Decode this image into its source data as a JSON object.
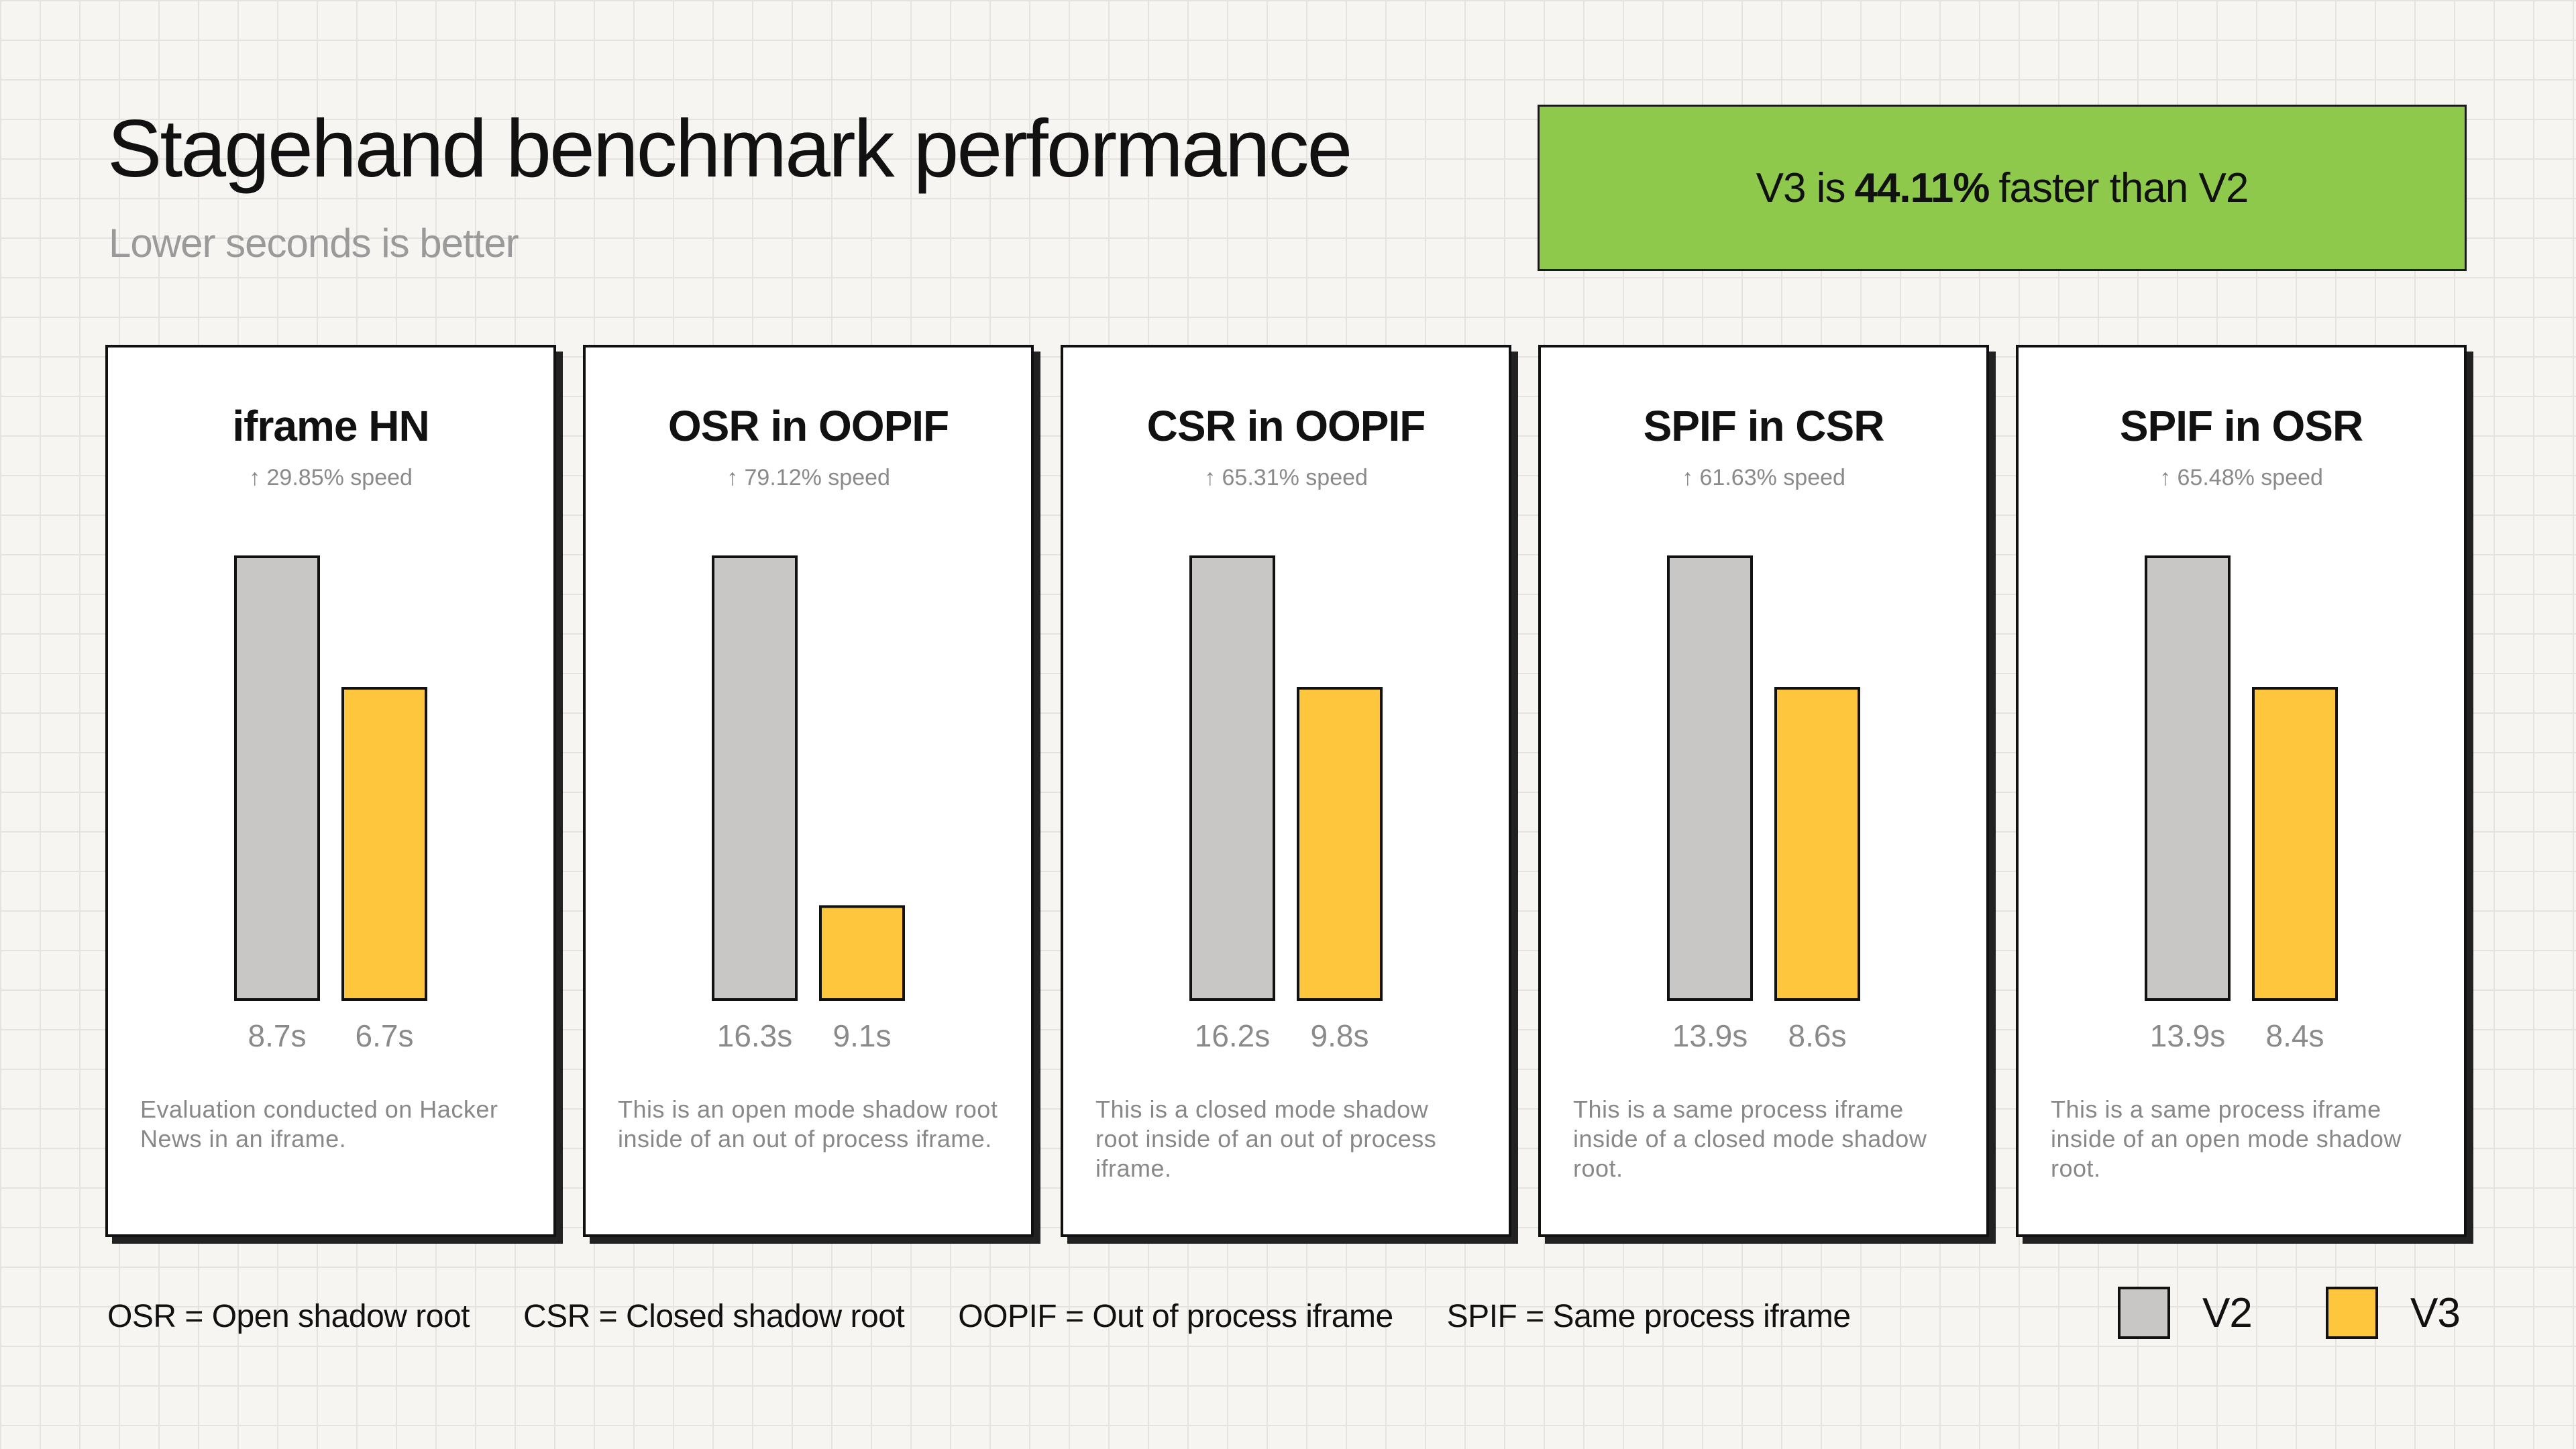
{
  "header": {
    "title": "Stagehand benchmark performance",
    "subtitle": "Lower seconds is better"
  },
  "banner": {
    "prefix": "V3 is",
    "highlight": "44.11%",
    "suffix": "faster than V2",
    "color": "#8fc94c"
  },
  "colors": {
    "v2": "#c8c7c5",
    "v3": "#fdc63c",
    "stroke": "#111111",
    "value_label": "#8a8a8a"
  },
  "chart_data": [
    {
      "type": "bar",
      "title": "iframe HN",
      "speed_label": "↑ 29.85% speed",
      "categories": [
        "V2",
        "V3"
      ],
      "values": [
        8.7,
        6.7
      ],
      "value_labels": [
        "8.7s",
        "6.7s"
      ],
      "description": "Evaluation conducted on Hacker News in an iframe."
    },
    {
      "type": "bar",
      "title": "OSR in OOPIF",
      "speed_label": "↑ 79.12% speed",
      "categories": [
        "V2",
        "V3"
      ],
      "values": [
        16.3,
        9.1
      ],
      "value_labels": [
        "16.3s",
        "9.1s"
      ],
      "description": "This is an open mode shadow root inside of an out of process iframe."
    },
    {
      "type": "bar",
      "title": "CSR in OOPIF",
      "speed_label": "↑ 65.31% speed",
      "categories": [
        "V2",
        "V3"
      ],
      "values": [
        16.2,
        9.8
      ],
      "value_labels": [
        "16.2s",
        "9.8s"
      ],
      "description": "This is a closed mode shadow root inside of an out of process iframe."
    },
    {
      "type": "bar",
      "title": "SPIF in CSR",
      "speed_label": "↑ 61.63% speed",
      "categories": [
        "V2",
        "V3"
      ],
      "values": [
        13.9,
        8.6
      ],
      "value_labels": [
        "13.9s",
        "8.6s"
      ],
      "description": "This is a same process iframe inside of a closed mode shadow root."
    },
    {
      "type": "bar",
      "title": "SPIF in OSR",
      "speed_label": "↑ 65.48% speed",
      "categories": [
        "V2",
        "V3"
      ],
      "values": [
        13.9,
        8.4
      ],
      "value_labels": [
        "13.9s",
        "8.4s"
      ],
      "description": "This is a same process iframe inside of an open mode shadow root."
    }
  ],
  "footer": {
    "definitions": [
      "OSR = Open shadow root",
      "CSR = Closed shadow root",
      "OOPIF = Out of process iframe",
      "SPIF = Same process iframe"
    ],
    "legend": [
      {
        "label": "V2",
        "color": "#c8c7c5"
      },
      {
        "label": "V3",
        "color": "#fdc63c"
      }
    ]
  }
}
